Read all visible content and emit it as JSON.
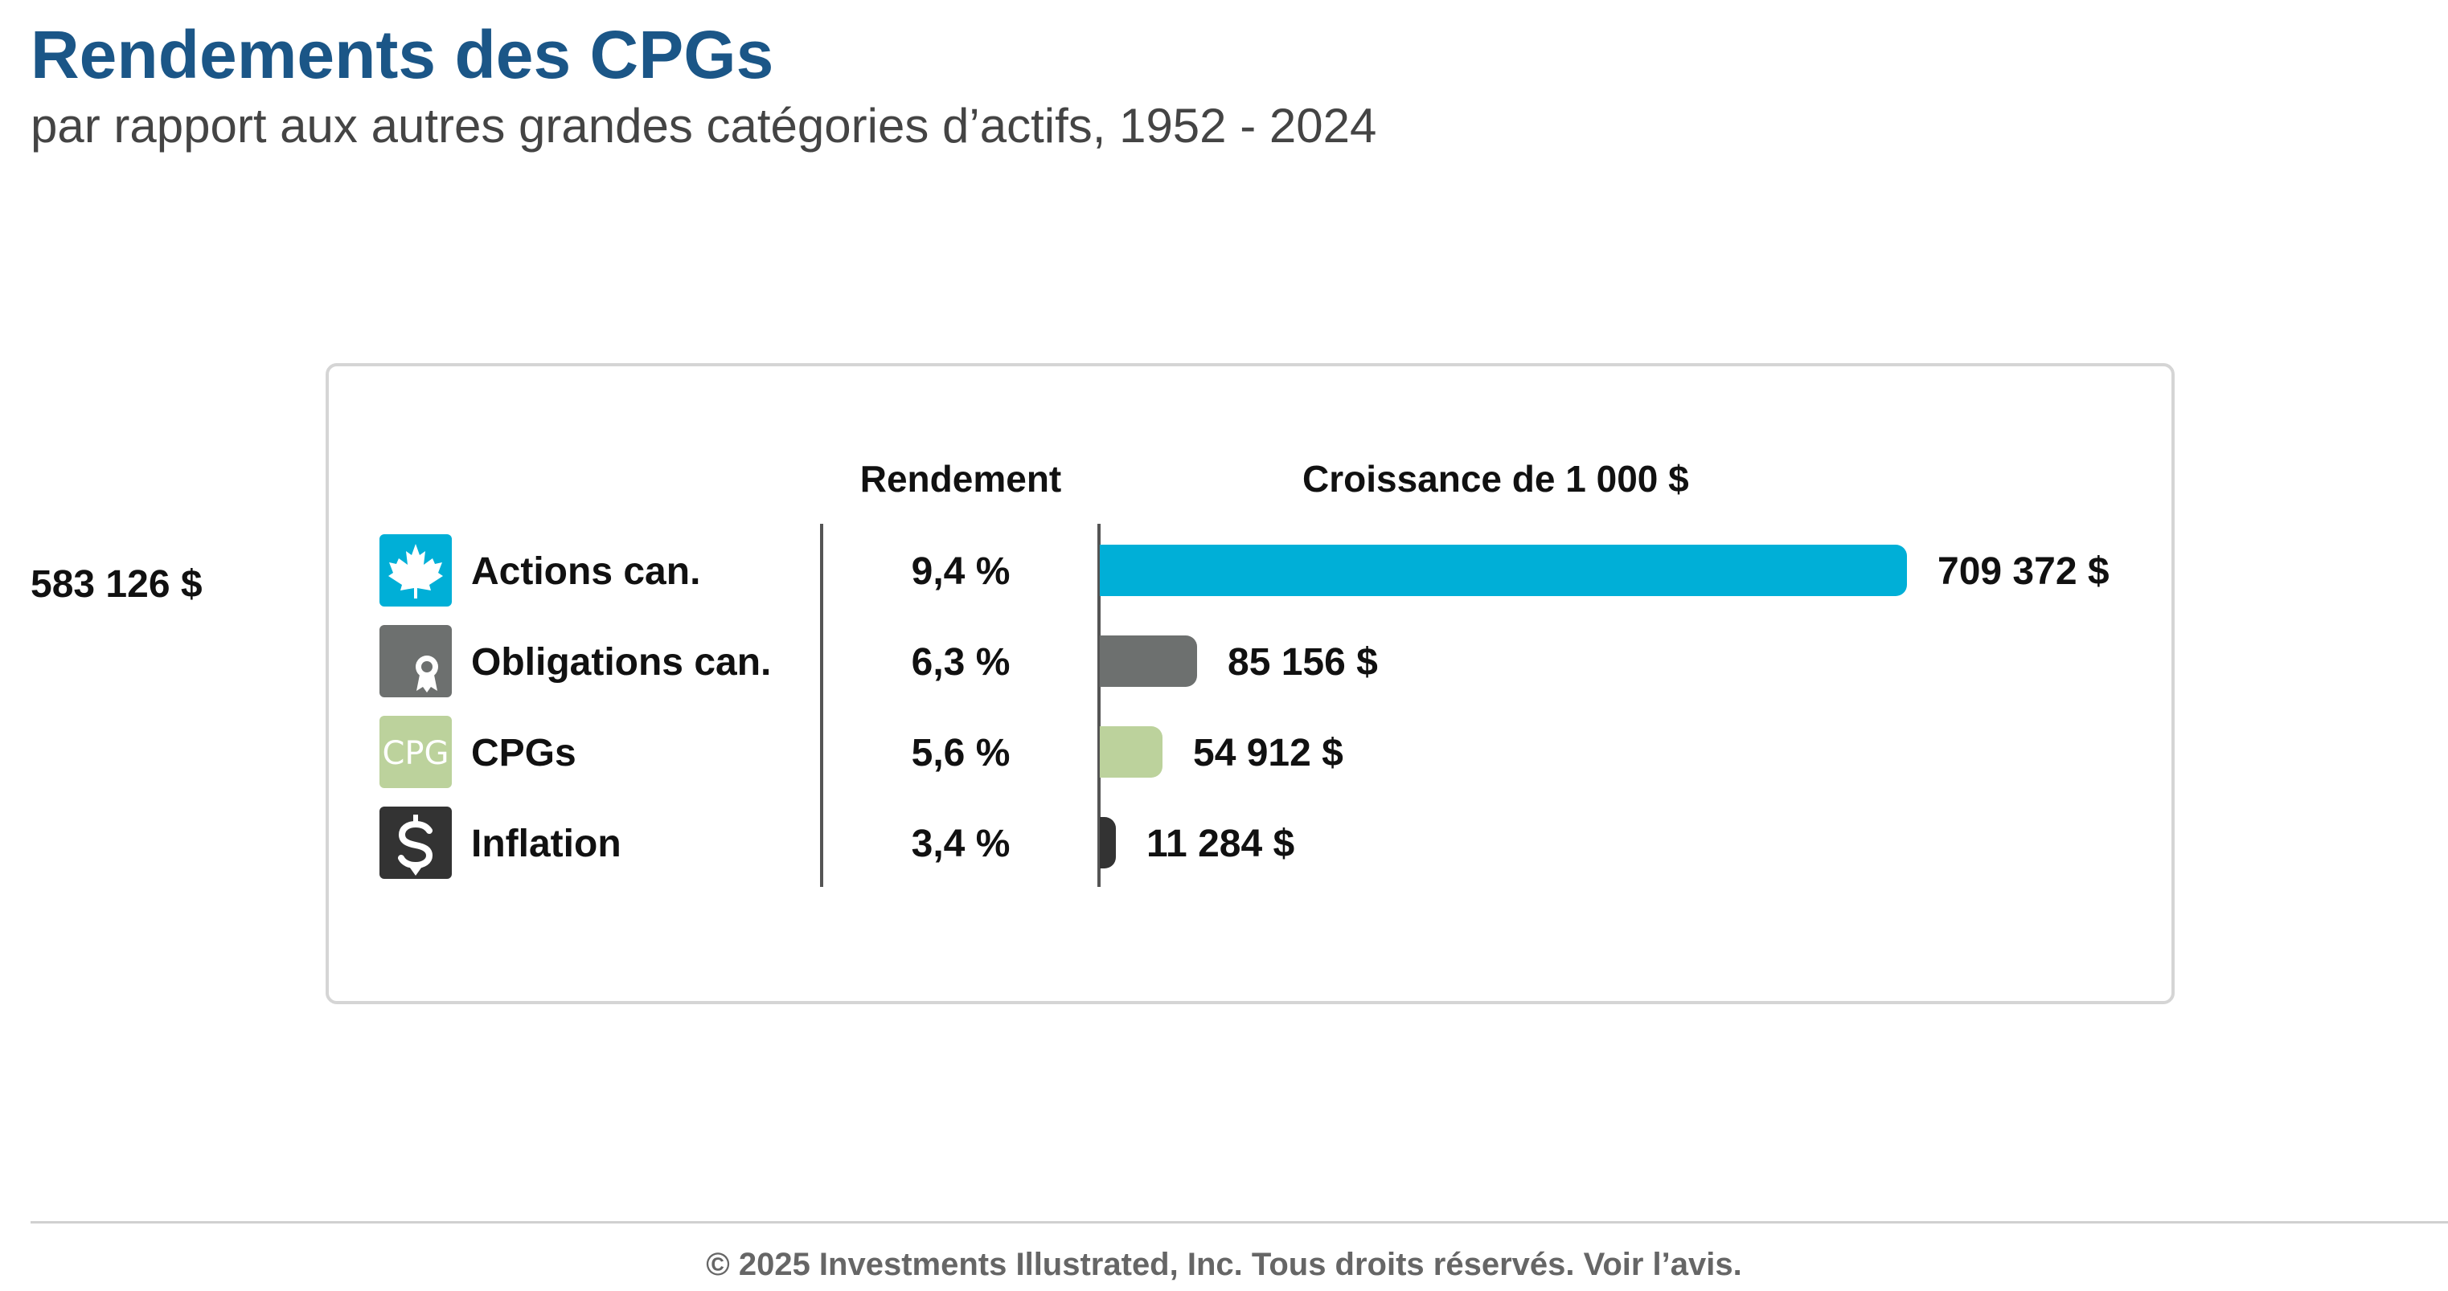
{
  "title": "Rendements des CPGs",
  "subtitle": "par rapport aux autres grandes catégories d’actifs, 1952 - 2024",
  "side_label": "583 126 $",
  "footer": "© 2025 Investments Illustrated, Inc. Tous droits réservés. Voir l’avis.",
  "chart_data": {
    "type": "bar",
    "orientation": "horizontal",
    "column_headers": {
      "return": "Rendement",
      "growth": "Croissance de 1 000 $"
    },
    "rows": [
      {
        "name": "Actions can.",
        "return": "9,4 %",
        "value": 709372,
        "value_label": "709 372 $",
        "color": "#00afd7",
        "icon": "maple-leaf-icon"
      },
      {
        "name": "Obligations can.",
        "return": "6,3 %",
        "value": 85156,
        "value_label": "85 156 $",
        "color": "#6d706f",
        "icon": "certificate-icon"
      },
      {
        "name": "CPGs",
        "return": "5,6 %",
        "value": 54912,
        "value_label": "54 912 $",
        "color": "#bcd29c",
        "icon": "cpg-icon",
        "icon_text": "CPG"
      },
      {
        "name": "Inflation",
        "return": "3,4 %",
        "value": 11284,
        "value_label": "11 284 $",
        "color": "#333333",
        "icon": "dollar-arrow-icon"
      }
    ]
  }
}
